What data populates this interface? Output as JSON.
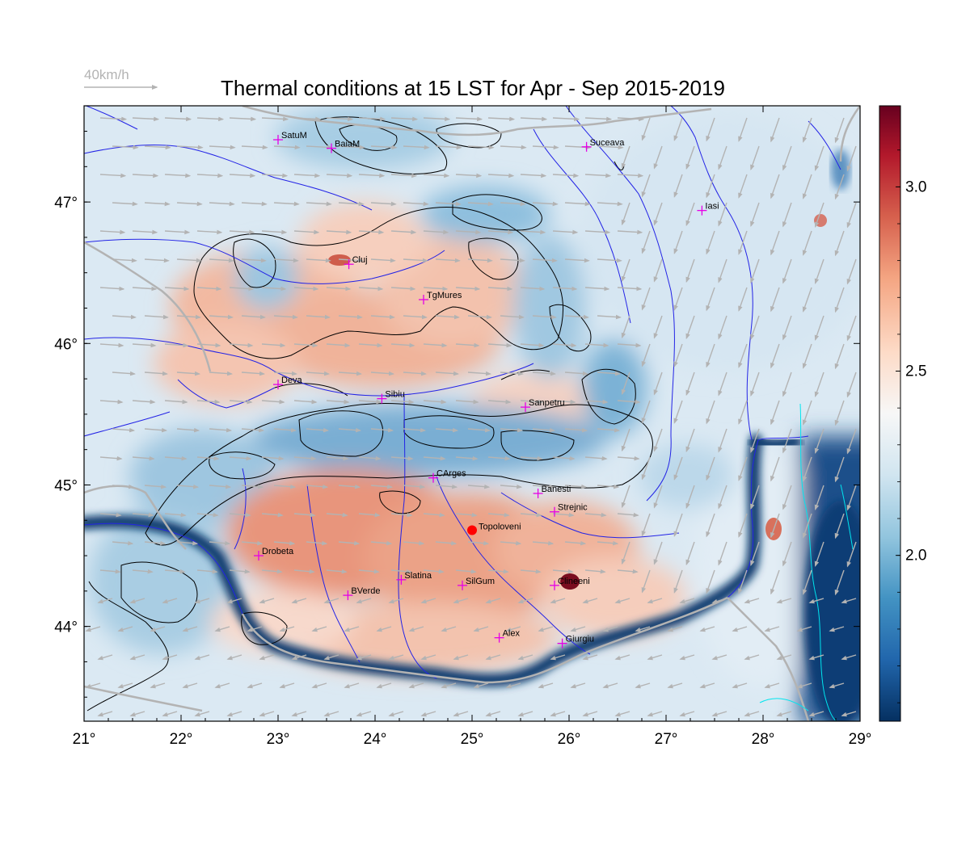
{
  "title": "Thermal conditions at 15 LST for Apr - Sep  2015-2019",
  "wind_scale": {
    "label": "40km/h",
    "color": "#b3b3b3"
  },
  "map": {
    "lon_range": [
      21,
      29
    ],
    "lat_range": [
      43.33,
      47.68
    ],
    "lon_ticks": [
      {
        "value": 21,
        "label": "21°"
      },
      {
        "value": 22,
        "label": "22°"
      },
      {
        "value": 23,
        "label": "23°"
      },
      {
        "value": 24,
        "label": "24°"
      },
      {
        "value": 25,
        "label": "25°"
      },
      {
        "value": 26,
        "label": "26°"
      },
      {
        "value": 27,
        "label": "27°"
      },
      {
        "value": 28,
        "label": "28°"
      },
      {
        "value": 29,
        "label": "29°"
      }
    ],
    "lat_ticks": [
      {
        "value": 44,
        "label": "44°"
      },
      {
        "value": 45,
        "label": "45°"
      },
      {
        "value": 46,
        "label": "46°"
      },
      {
        "value": 47,
        "label": "47°"
      }
    ],
    "colors": {
      "river": "#2323e6",
      "border": "#b3b3b3",
      "contour": "#000000",
      "coast": "#00e5ee",
      "station_marker": "#e600e6",
      "highlight_marker": "#ff0000"
    },
    "stations": [
      {
        "name": "SatuM",
        "lon": 23.0,
        "lat": 47.44
      },
      {
        "name": "BaiaM",
        "lon": 23.55,
        "lat": 47.38
      },
      {
        "name": "Suceava",
        "lon": 26.18,
        "lat": 47.39
      },
      {
        "name": "Iasi",
        "lon": 27.37,
        "lat": 46.94
      },
      {
        "name": "Cluj",
        "lon": 23.73,
        "lat": 46.56
      },
      {
        "name": "TgMures",
        "lon": 24.5,
        "lat": 46.31
      },
      {
        "name": "Deva",
        "lon": 23.0,
        "lat": 45.71
      },
      {
        "name": "Sibiu",
        "lon": 24.07,
        "lat": 45.61
      },
      {
        "name": "Sanpetru",
        "lon": 25.55,
        "lat": 45.55
      },
      {
        "name": "CArges",
        "lon": 24.6,
        "lat": 45.05
      },
      {
        "name": "Banesti",
        "lon": 25.68,
        "lat": 44.94
      },
      {
        "name": "Strejnic",
        "lon": 25.85,
        "lat": 44.81
      },
      {
        "name": "Drobeta",
        "lon": 22.8,
        "lat": 44.5
      },
      {
        "name": "Slatina",
        "lon": 24.27,
        "lat": 44.33
      },
      {
        "name": "SilGum",
        "lon": 24.9,
        "lat": 44.29
      },
      {
        "name": "Clineeni",
        "lon": 25.85,
        "lat": 44.29
      },
      {
        "name": "BVerde",
        "lon": 23.72,
        "lat": 44.22
      },
      {
        "name": "Alex",
        "lon": 25.28,
        "lat": 43.92
      },
      {
        "name": "Giurgiu",
        "lon": 25.93,
        "lat": 43.88
      }
    ],
    "highlight_station": {
      "name": "Topoloveni",
      "lon": 25.0,
      "lat": 44.68
    }
  },
  "colorbar": {
    "min": 1.55,
    "max": 3.22,
    "ticks": [
      {
        "value": 2.0,
        "label": "2.0"
      },
      {
        "value": 2.5,
        "label": "2.5"
      },
      {
        "value": 3.0,
        "label": "3.0"
      }
    ],
    "colors": [
      "#053061",
      "#2166ac",
      "#4393c3",
      "#92c5de",
      "#d1e5f0",
      "#f7f7f7",
      "#fddbc7",
      "#f4a582",
      "#d6604d",
      "#b2182b",
      "#67001f"
    ]
  }
}
